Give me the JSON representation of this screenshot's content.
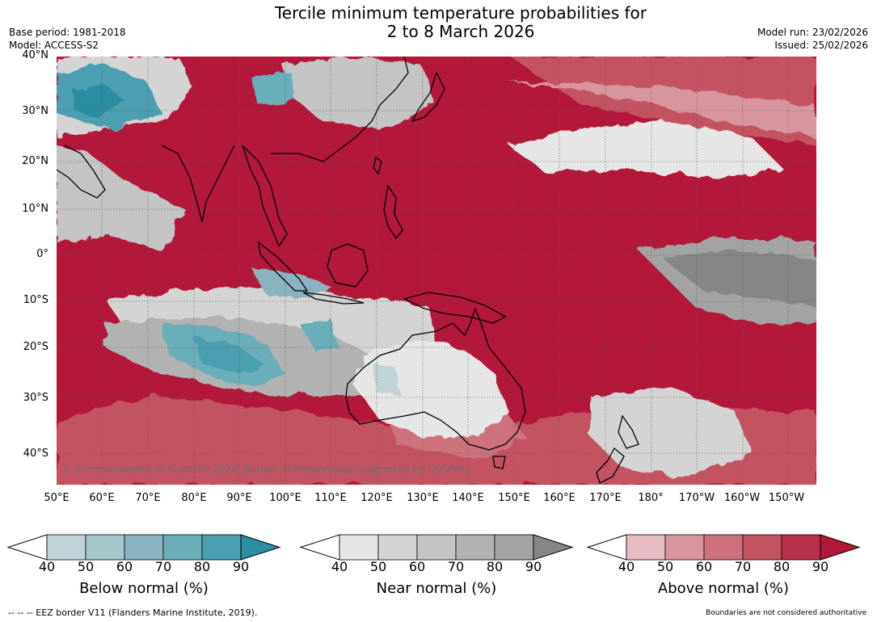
{
  "title_line1": "Tercile minimum temperature probabilities for",
  "title_line2": "2 to 8 March 2026",
  "base_period": "Base period: 1981-2018",
  "model": "Model: ACCESS-S2",
  "model_run": "Model run: 23/02/2026",
  "issued": "Issued: 25/02/2026",
  "copyright": "© Commonwealth of Australia 2026, Bureau of Meteorology, supported by COSPPac",
  "lat_labels": [
    "40°N",
    "30°N",
    "20°N",
    "10°N",
    "0°",
    "10°S",
    "20°S",
    "30°S",
    "40°S"
  ],
  "lon_labels": [
    "50°E",
    "60°E",
    "70°E",
    "80°E",
    "90°E",
    "100°E",
    "110°E",
    "120°E",
    "130°E",
    "140°E",
    "150°E",
    "160°E",
    "170°E",
    "180°",
    "170°W",
    "160°W",
    "150°W"
  ],
  "legends": [
    {
      "label": "Below normal (%)",
      "ticks": [
        "40",
        "50",
        "60",
        "70",
        "80",
        "90"
      ],
      "colors": [
        "#bfd3d9",
        "#a5c7cb",
        "#8ab3bf",
        "#6aaeb9",
        "#4b9fb0",
        "#2b8ea3"
      ]
    },
    {
      "label": "Near normal (%)",
      "ticks": [
        "40",
        "50",
        "60",
        "70",
        "80",
        "90"
      ],
      "colors": [
        "#e6e6e6",
        "#d4d4d4",
        "#c4c4c4",
        "#b2b2b2",
        "#a3a3a3",
        "#868686"
      ]
    },
    {
      "label": "Above normal (%)",
      "ticks": [
        "40",
        "50",
        "60",
        "70",
        "80",
        "90"
      ],
      "colors": [
        "#e7bcc2",
        "#d9959e",
        "#cd727c",
        "#c45362",
        "#b8304a",
        "#b3183a"
      ]
    }
  ],
  "footer_left": "--  --  -- EEZ border V11 (Flanders Marine Institute, 2019).",
  "footer_right": "Boundaries are not considered authoritative"
}
